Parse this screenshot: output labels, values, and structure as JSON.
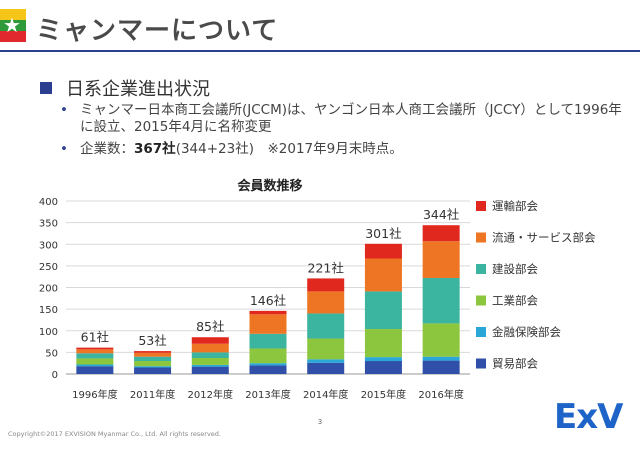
{
  "header": {
    "title": "ミャンマーについて"
  },
  "section": {
    "heading": "日系企業進出状況"
  },
  "bullets": {
    "b1": "ミャンマー日本商工会議所(JCCM)は、ヤンゴン日本人商工会議所（JCCY）として1996年に設立、2015年4月に名称変更",
    "b2_prefix": "企業数：",
    "b2_bold": "367社",
    "b2_suffix": "(344+23社)　※2017年9月末時点。"
  },
  "chart_data": {
    "type": "bar",
    "stacked": true,
    "title": "会員数推移",
    "categories": [
      "1996年度",
      "2011年度",
      "2012年度",
      "2013年度",
      "2014年度",
      "2015年度",
      "2016年度"
    ],
    "ylim": [
      0,
      400
    ],
    "yticks": [
      0,
      50,
      100,
      150,
      200,
      250,
      300,
      350,
      400
    ],
    "totals": [
      61,
      53,
      85,
      146,
      221,
      301,
      344
    ],
    "total_labels": [
      "61社",
      "53社",
      "85社",
      "146社",
      "221社",
      "301社",
      "344社"
    ],
    "grid": true,
    "legend_position": "right",
    "series": [
      {
        "name": "貿易部会",
        "color": "#2F4FA8",
        "values": [
          18,
          15,
          17,
          20,
          26,
          30,
          31
        ]
      },
      {
        "name": "金融保険部会",
        "color": "#2AA7D6",
        "values": [
          4,
          3,
          4,
          5,
          8,
          9,
          9
        ]
      },
      {
        "name": "工業部会",
        "color": "#8CC63E",
        "values": [
          14,
          12,
          16,
          34,
          48,
          65,
          77
        ]
      },
      {
        "name": "建設部会",
        "color": "#3BB5A0",
        "values": [
          12,
          10,
          13,
          34,
          58,
          87,
          105
        ]
      },
      {
        "name": "流通・サービス部会",
        "color": "#EE7523",
        "values": [
          9,
          9,
          20,
          45,
          51,
          76,
          85
        ]
      },
      {
        "name": "運輸部会",
        "color": "#E0281F",
        "values": [
          4,
          4,
          15,
          8,
          30,
          34,
          37
        ]
      }
    ]
  },
  "footer": {
    "page_number": "3",
    "copyright": "Copyright©2017 EXVISION Myanmar Co., Ltd. All rights reserved.",
    "logo_text": "ExV"
  }
}
